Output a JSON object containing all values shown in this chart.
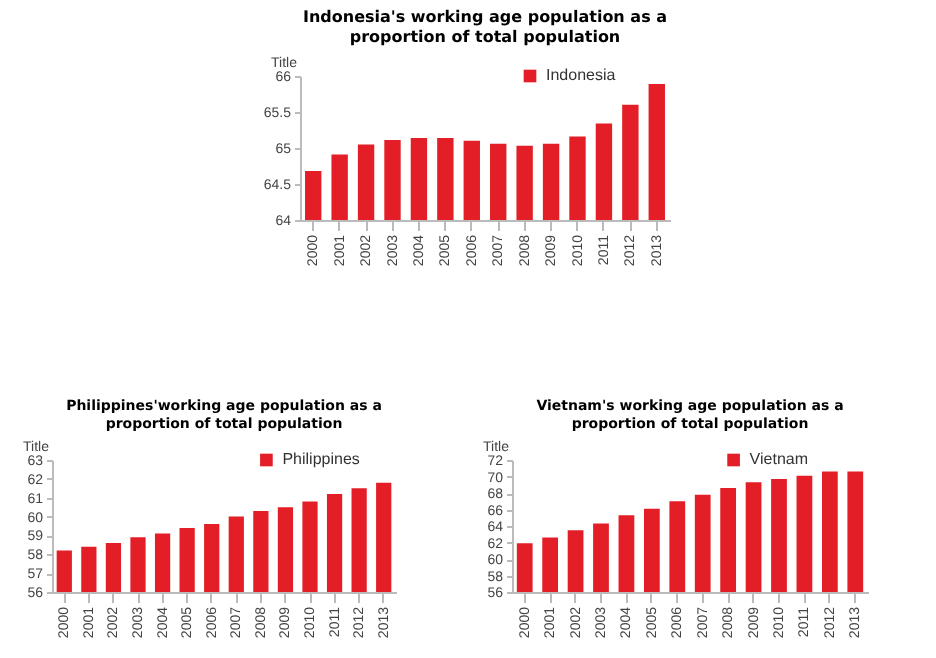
{
  "chart_data": [
    {
      "type": "bar",
      "title": "Indonesia's working age population as a proportion of total population",
      "ylabel": "Title",
      "categories": [
        "2000",
        "2001",
        "2002",
        "2003",
        "2004",
        "2005",
        "2006",
        "2007",
        "2008",
        "2009",
        "2010",
        "2011",
        "2012",
        "2013"
      ],
      "series": [
        {
          "name": "Indonesia",
          "color": "#e41e26",
          "values": [
            64.68,
            64.91,
            65.05,
            65.11,
            65.14,
            65.14,
            65.1,
            65.06,
            65.03,
            65.06,
            65.16,
            65.34,
            65.6,
            65.89
          ]
        }
      ],
      "ylim": [
        64,
        66
      ],
      "yticks": [
        64,
        64.5,
        65,
        65.5,
        66
      ],
      "legend": "top right",
      "grid": false
    },
    {
      "type": "bar",
      "title": "Philippines'working age population as a proportion of total population",
      "ylabel": "Title",
      "categories": [
        "2000",
        "2001",
        "2002",
        "2003",
        "2004",
        "2005",
        "2006",
        "2007",
        "2008",
        "2009",
        "2010",
        "2011",
        "2012",
        "2013"
      ],
      "series": [
        {
          "name": "Philippines",
          "color": "#e41e26",
          "values": [
            58.2,
            58.4,
            58.6,
            58.9,
            59.1,
            59.4,
            59.6,
            60.0,
            60.3,
            60.5,
            60.8,
            61.2,
            61.5,
            61.8
          ]
        }
      ],
      "ylim": [
        56,
        63
      ],
      "yticks": [
        56,
        57,
        58,
        59,
        60,
        61,
        62,
        63
      ],
      "legend": "top right",
      "grid": false
    },
    {
      "type": "bar",
      "title": "Vietnam's working age population as a proportion of total population",
      "ylabel": "Title",
      "categories": [
        "2000",
        "2001",
        "2002",
        "2003",
        "2004",
        "2005",
        "2006",
        "2007",
        "2008",
        "2009",
        "2010",
        "2011",
        "2012",
        "2013"
      ],
      "series": [
        {
          "name": "Vietnam",
          "color": "#e41e26",
          "values": [
            61.9,
            62.6,
            63.5,
            64.3,
            65.3,
            66.1,
            67.0,
            67.8,
            68.6,
            69.3,
            69.7,
            70.1,
            70.6,
            70.6
          ]
        }
      ],
      "ylim": [
        56,
        72
      ],
      "yticks": [
        56,
        58,
        60,
        62,
        64,
        66,
        68,
        70,
        72
      ],
      "legend": "top right",
      "grid": false
    }
  ]
}
